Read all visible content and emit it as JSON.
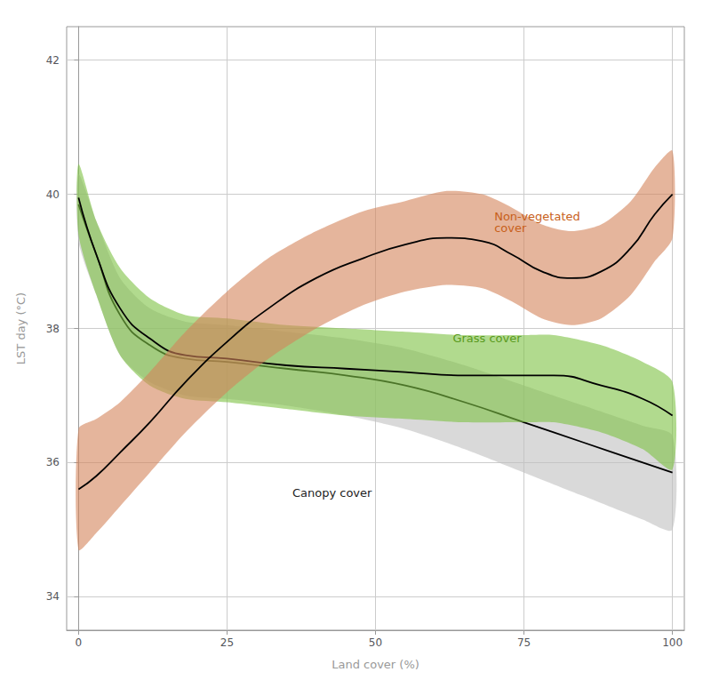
{
  "chart_data": {
    "type": "line",
    "xlabel": "Land cover (%)",
    "ylabel": "LST day (°C)",
    "xlim": [
      -2,
      102
    ],
    "ylim": [
      33.5,
      42.5
    ],
    "xticks": [
      0,
      25,
      50,
      75,
      100
    ],
    "yticks": [
      34,
      36,
      38,
      40,
      42
    ],
    "grid": true,
    "background_color": "#ffffff",
    "grid_color": "#cccccc",
    "series": [
      {
        "x": [
          0,
          3,
          7,
          12,
          18,
          25,
          35,
          45,
          55,
          65,
          75,
          85,
          95,
          100
        ],
        "values": [
          39.85,
          39.1,
          38.2,
          37.75,
          37.55,
          37.5,
          37.4,
          37.3,
          37.15,
          36.9,
          36.6,
          36.3,
          36.0,
          35.85
        ],
        "lo": [
          39.3,
          38.5,
          37.6,
          37.2,
          37.0,
          36.95,
          36.85,
          36.7,
          36.5,
          36.2,
          35.85,
          35.5,
          35.15,
          35.0
        ],
        "hi": [
          40.3,
          39.6,
          38.75,
          38.3,
          38.1,
          38.05,
          37.95,
          37.85,
          37.7,
          37.45,
          37.15,
          36.85,
          36.55,
          36.4
        ],
        "color": "#c0c0c0",
        "line_color": "#000000"
      },
      {
        "x": [
          0,
          3,
          7,
          12,
          18,
          25,
          35,
          45,
          55,
          65,
          75,
          80,
          88,
          95,
          100
        ],
        "values": [
          39.95,
          39.1,
          38.3,
          37.85,
          37.6,
          37.55,
          37.45,
          37.4,
          37.35,
          37.3,
          37.3,
          37.3,
          37.15,
          36.95,
          36.7
        ],
        "lo": [
          39.4,
          38.5,
          37.6,
          37.15,
          36.95,
          36.9,
          36.8,
          36.7,
          36.65,
          36.6,
          36.6,
          36.6,
          36.45,
          36.2,
          35.9
        ],
        "hi": [
          40.45,
          39.6,
          38.9,
          38.45,
          38.2,
          38.15,
          38.05,
          38.0,
          37.95,
          37.9,
          37.9,
          37.9,
          37.75,
          37.5,
          37.2
        ],
        "color": "#7dc142",
        "line_color": "#000000"
      },
      {
        "x": [
          0,
          3,
          7,
          12,
          18,
          25,
          32,
          40,
          48,
          55,
          62,
          68,
          73,
          78,
          83,
          88,
          93,
          97,
          100
        ],
        "values": [
          35.6,
          35.8,
          36.15,
          36.6,
          37.2,
          37.8,
          38.3,
          38.75,
          39.05,
          39.25,
          39.35,
          39.3,
          39.1,
          38.85,
          38.75,
          38.85,
          39.2,
          39.7,
          40.0
        ],
        "lo": [
          34.7,
          34.95,
          35.35,
          35.85,
          36.45,
          37.05,
          37.55,
          38.0,
          38.35,
          38.55,
          38.65,
          38.6,
          38.4,
          38.15,
          38.05,
          38.15,
          38.5,
          39.0,
          39.35
        ],
        "hi": [
          36.5,
          36.65,
          36.9,
          37.35,
          37.95,
          38.55,
          39.05,
          39.45,
          39.75,
          39.9,
          40.05,
          40.0,
          39.8,
          39.55,
          39.45,
          39.55,
          39.9,
          40.4,
          40.65
        ],
        "color": "#d4845a",
        "line_color": "#000000"
      }
    ],
    "annotations": [
      {
        "text": "Non-vegetated\ncover",
        "color": "#c8601a"
      },
      {
        "text": "Grass cover",
        "color": "#5a9a20"
      },
      {
        "text": "Canopy cover",
        "color": "#222222"
      }
    ]
  }
}
